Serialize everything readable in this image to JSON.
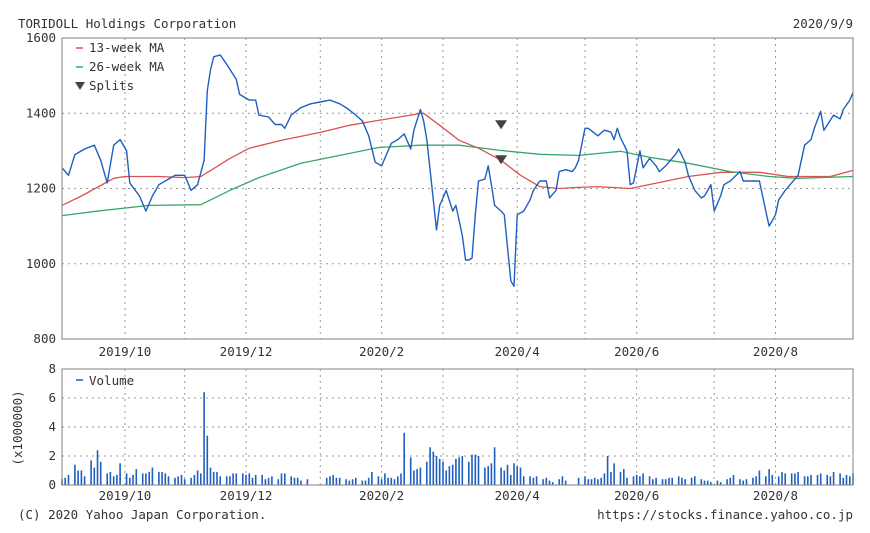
{
  "header": {
    "company": "TORIDOLL Holdings Corporation",
    "date": "2020/9/9"
  },
  "footer": {
    "copyright": "(C) 2020 Yahoo Japan Corporation.",
    "url": "https://stocks.finance.yahoo.co.jp"
  },
  "colors": {
    "price": "#1f5fbf",
    "ma13": "#d9534f",
    "ma26": "#3aa66a",
    "volume": "#1f5fbf",
    "splits": "#444444",
    "grid": "#9a9a9a",
    "frame": "#808080"
  },
  "chart_data": [
    {
      "type": "line",
      "title": "TORIDOLL Holdings Corporation",
      "xlabel": "",
      "ylabel": "",
      "x_unit": "trading day index",
      "xlim": [
        0,
        245
      ],
      "ylim": [
        800,
        1600
      ],
      "grid": true,
      "legend_placement": "top-left",
      "y_ticks": [
        800,
        1000,
        1200,
        1400,
        1600
      ],
      "x_ticks": [
        {
          "x": 19.5,
          "label": "2019/10"
        },
        {
          "x": 38,
          "label": ""
        },
        {
          "x": 57,
          "label": "2019/12"
        },
        {
          "x": 80,
          "label": ""
        },
        {
          "x": 99,
          "label": "2020/2"
        },
        {
          "x": 118,
          "label": ""
        },
        {
          "x": 141,
          "label": "2020/4"
        },
        {
          "x": 162,
          "label": ""
        },
        {
          "x": 178,
          "label": "2020/6"
        },
        {
          "x": 202,
          "label": ""
        },
        {
          "x": 221,
          "label": "2020/8"
        }
      ],
      "legend": [
        "13-week MA",
        "26-week MA",
        "Splits"
      ],
      "series": [
        {
          "name": "Price",
          "color_key": "price",
          "points": [
            [
              0,
              1255
            ],
            [
              2,
              1235
            ],
            [
              4,
              1290
            ],
            [
              7,
              1305
            ],
            [
              10,
              1315
            ],
            [
              12,
              1275
            ],
            [
              14,
              1215
            ],
            [
              16,
              1315
            ],
            [
              18,
              1330
            ],
            [
              20,
              1300
            ],
            [
              21,
              1215
            ],
            [
              24,
              1180
            ],
            [
              26,
              1140
            ],
            [
              28,
              1180
            ],
            [
              30,
              1210
            ],
            [
              33,
              1225
            ],
            [
              35,
              1235
            ],
            [
              38,
              1235
            ],
            [
              40,
              1195
            ],
            [
              42,
              1210
            ],
            [
              44,
              1275
            ],
            [
              45,
              1460
            ],
            [
              46,
              1515
            ],
            [
              47,
              1550
            ],
            [
              49,
              1555
            ],
            [
              51,
              1530
            ],
            [
              54,
              1490
            ],
            [
              55,
              1450
            ],
            [
              58,
              1435
            ],
            [
              60,
              1435
            ],
            [
              61,
              1395
            ],
            [
              64,
              1390
            ],
            [
              66,
              1370
            ],
            [
              68,
              1370
            ],
            [
              69,
              1360
            ],
            [
              71,
              1395
            ],
            [
              74,
              1415
            ],
            [
              77,
              1425
            ],
            [
              80,
              1430
            ],
            [
              83,
              1435
            ],
            [
              86,
              1425
            ],
            [
              88,
              1415
            ],
            [
              91,
              1395
            ],
            [
              93,
              1380
            ],
            [
              95,
              1340
            ],
            [
              97,
              1270
            ],
            [
              99,
              1260
            ],
            [
              102,
              1320
            ],
            [
              104,
              1330
            ],
            [
              106,
              1345
            ],
            [
              108,
              1305
            ],
            [
              109,
              1355
            ],
            [
              111,
              1410
            ],
            [
              112,
              1380
            ],
            [
              113,
              1330
            ],
            [
              115,
              1170
            ],
            [
              116,
              1090
            ],
            [
              117,
              1155
            ],
            [
              119,
              1195
            ],
            [
              121,
              1140
            ],
            [
              122,
              1155
            ],
            [
              124,
              1075
            ],
            [
              125,
              1010
            ],
            [
              126,
              1010
            ],
            [
              127,
              1015
            ],
            [
              128,
              1130
            ],
            [
              129,
              1220
            ],
            [
              131,
              1225
            ],
            [
              132,
              1260
            ],
            [
              133,
              1210
            ],
            [
              134,
              1155
            ],
            [
              136,
              1140
            ],
            [
              137,
              1130
            ],
            [
              139,
              955
            ],
            [
              140,
              940
            ],
            [
              141,
              1130
            ],
            [
              143,
              1140
            ],
            [
              145,
              1170
            ],
            [
              146,
              1195
            ],
            [
              148,
              1220
            ],
            [
              150,
              1220
            ],
            [
              151,
              1175
            ],
            [
              153,
              1195
            ],
            [
              154,
              1245
            ],
            [
              156,
              1250
            ],
            [
              158,
              1245
            ],
            [
              159,
              1255
            ],
            [
              160,
              1275
            ],
            [
              162,
              1360
            ],
            [
              163,
              1360
            ],
            [
              166,
              1340
            ],
            [
              168,
              1355
            ],
            [
              170,
              1350
            ],
            [
              171,
              1330
            ],
            [
              172,
              1360
            ],
            [
              173,
              1335
            ],
            [
              175,
              1300
            ],
            [
              176,
              1210
            ],
            [
              177,
              1215
            ],
            [
              179,
              1300
            ],
            [
              180,
              1255
            ],
            [
              182,
              1280
            ],
            [
              184,
              1260
            ],
            [
              185,
              1245
            ],
            [
              187,
              1260
            ],
            [
              190,
              1290
            ],
            [
              191,
              1305
            ],
            [
              193,
              1270
            ],
            [
              194,
              1235
            ],
            [
              196,
              1195
            ],
            [
              198,
              1175
            ],
            [
              199,
              1180
            ],
            [
              201,
              1210
            ],
            [
              202,
              1140
            ],
            [
              204,
              1180
            ],
            [
              205,
              1210
            ],
            [
              207,
              1220
            ],
            [
              210,
              1245
            ],
            [
              211,
              1220
            ],
            [
              216,
              1220
            ],
            [
              218,
              1140
            ],
            [
              219,
              1100
            ],
            [
              221,
              1130
            ],
            [
              222,
              1170
            ],
            [
              224,
              1195
            ],
            [
              227,
              1225
            ],
            [
              228,
              1235
            ],
            [
              230,
              1315
            ],
            [
              232,
              1330
            ],
            [
              233,
              1360
            ],
            [
              235,
              1405
            ],
            [
              236,
              1355
            ],
            [
              239,
              1395
            ],
            [
              241,
              1385
            ],
            [
              242,
              1410
            ],
            [
              244,
              1435
            ],
            [
              245,
              1455
            ]
          ]
        },
        {
          "name": "13-week MA",
          "color_key": "ma13",
          "points": [
            [
              0,
              1155
            ],
            [
              6,
              1180
            ],
            [
              12,
              1208
            ],
            [
              16,
              1227
            ],
            [
              19.5,
              1232
            ],
            [
              30,
              1232
            ],
            [
              38,
              1229
            ],
            [
              43,
              1232
            ],
            [
              47,
              1253
            ],
            [
              52,
              1280
            ],
            [
              58,
              1307
            ],
            [
              68,
              1328
            ],
            [
              80,
              1349
            ],
            [
              89,
              1368
            ],
            [
              98,
              1381
            ],
            [
              108,
              1395
            ],
            [
              111,
              1400
            ],
            [
              112,
              1400
            ],
            [
              117,
              1368
            ],
            [
              123,
              1328
            ],
            [
              129,
              1307
            ],
            [
              136,
              1275
            ],
            [
              142,
              1235
            ],
            [
              148,
              1205
            ],
            [
              154,
              1200
            ],
            [
              160,
              1203
            ],
            [
              166,
              1205
            ],
            [
              176,
              1200
            ],
            [
              185,
              1216
            ],
            [
              194,
              1232
            ],
            [
              204,
              1243
            ],
            [
              216,
              1243
            ],
            [
              225,
              1232
            ],
            [
              238,
              1232
            ],
            [
              245,
              1248
            ]
          ]
        },
        {
          "name": "26-week MA",
          "color_key": "ma26",
          "points": [
            [
              0,
              1128
            ],
            [
              12,
              1141
            ],
            [
              27,
              1155
            ],
            [
              43,
              1157
            ],
            [
              52,
              1195
            ],
            [
              61,
              1229
            ],
            [
              74,
              1267
            ],
            [
              86,
              1288
            ],
            [
              98,
              1309
            ],
            [
              111,
              1315
            ],
            [
              123,
              1315
            ],
            [
              136,
              1301
            ],
            [
              148,
              1291
            ],
            [
              160,
              1288
            ],
            [
              173,
              1299
            ],
            [
              182,
              1283
            ],
            [
              194,
              1267
            ],
            [
              207,
              1245
            ],
            [
              219,
              1232
            ],
            [
              228,
              1227
            ],
            [
              245,
              1232
            ]
          ]
        }
      ],
      "splits": [
        {
          "x": 136,
          "y": 1368
        },
        {
          "x": 136,
          "y": 1275
        }
      ]
    },
    {
      "type": "bar",
      "title": "",
      "legend": [
        "Volume"
      ],
      "ylabel": "(x1000000)",
      "ylim": [
        0,
        8
      ],
      "y_ticks": [
        0,
        2,
        4,
        6,
        8
      ],
      "xlim": [
        0,
        245
      ],
      "grid": true,
      "legend_placement": "top-left",
      "values": [
        0.4,
        0.5,
        0.7,
        0,
        1.4,
        1.0,
        1.0,
        0.6,
        0,
        1.7,
        1.2,
        2.4,
        1.6,
        0,
        0.8,
        0.9,
        0.6,
        0.7,
        1.5,
        0,
        0.8,
        0.5,
        0.7,
        1.1,
        0,
        0.8,
        0.8,
        0.9,
        1.2,
        0,
        0.9,
        0.9,
        0.8,
        0.6,
        0,
        0.5,
        0.6,
        0.7,
        0.4,
        0,
        0.5,
        0.7,
        1.0,
        0.8,
        6.4,
        3.4,
        1.2,
        0.9,
        0.9,
        0.6,
        0,
        0.6,
        0.6,
        0.8,
        0.8,
        0,
        0.8,
        0.7,
        0.8,
        0.5,
        0.7,
        0,
        0.7,
        0.4,
        0.5,
        0.6,
        0,
        0.4,
        0.8,
        0.8,
        0,
        0.6,
        0.5,
        0.5,
        0.3,
        0,
        0.4,
        0,
        0,
        0,
        0,
        0,
        0.5,
        0.6,
        0.7,
        0.5,
        0.5,
        0,
        0.4,
        0.3,
        0.4,
        0.5,
        0,
        0.3,
        0.3,
        0.5,
        0.9,
        0,
        0.6,
        0.4,
        0.8,
        0.5,
        0.5,
        0.4,
        0.6,
        0.8,
        3.6,
        0,
        1.9,
        1.0,
        1.1,
        1.2,
        0,
        1.6,
        2.6,
        2.3,
        2.0,
        1.8,
        1.6,
        1.0,
        1.3,
        1.4,
        1.8,
        1.9,
        2.0,
        0,
        1.6,
        2.1,
        2.1,
        2.0,
        0,
        1.2,
        1.3,
        1.5,
        2.6,
        0,
        1.2,
        1.0,
        1.4,
        0.7,
        1.5,
        1.3,
        1.2,
        0.6,
        0,
        0.6,
        0.5,
        0.6,
        0,
        0.4,
        0.5,
        0.3,
        0.2,
        0,
        0.4,
        0.6,
        0.3,
        0,
        0,
        0,
        0.5,
        0,
        0.6,
        0.4,
        0.4,
        0.5,
        0.4,
        0.5,
        0.8,
        2.0,
        0.9,
        1.5,
        0,
        0.9,
        1.1,
        0.5,
        0,
        0.6,
        0.7,
        0.6,
        0.8,
        0,
        0.6,
        0.4,
        0.5,
        0,
        0.4,
        0.4,
        0.5,
        0.5,
        0,
        0.6,
        0.5,
        0.4,
        0,
        0.5,
        0.6,
        0,
        0.4,
        0.3,
        0.3,
        0.2,
        0,
        0.3,
        0.2,
        0,
        0.4,
        0.5,
        0.7,
        0,
        0.4,
        0.3,
        0.4,
        0,
        0.5,
        0.6,
        1.0,
        0,
        0.6,
        1.1,
        0.7,
        0,
        0.6,
        0.9,
        0.8,
        0,
        0.8,
        0.8,
        0.9,
        0,
        0.6,
        0.6,
        0.7,
        0,
        0.7,
        0.8,
        0,
        0.7,
        0.6,
        0.9,
        0,
        0.8,
        0.5,
        0.7,
        0.6,
        0.8
      ]
    }
  ]
}
